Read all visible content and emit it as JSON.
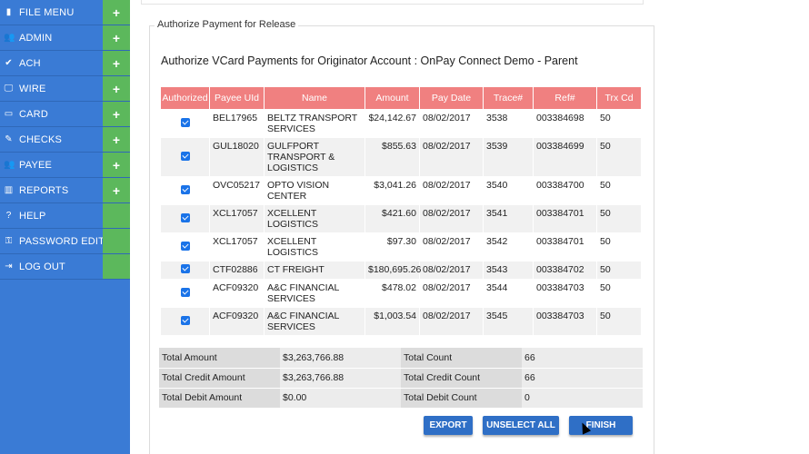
{
  "sidebar": {
    "items": [
      {
        "label": "FILE MENU",
        "icon": "folder-icon",
        "glyph": "▮",
        "expand": "+"
      },
      {
        "label": "ADMIN",
        "icon": "users-icon",
        "glyph": "👥",
        "expand": "+"
      },
      {
        "label": "ACH",
        "icon": "check-icon",
        "glyph": "✔",
        "expand": "+"
      },
      {
        "label": "WIRE",
        "icon": "monitor-icon",
        "glyph": "🖵",
        "expand": "+"
      },
      {
        "label": "CARD",
        "icon": "card-icon",
        "glyph": "▭",
        "expand": "+"
      },
      {
        "label": "CHECKS",
        "icon": "edit-icon",
        "glyph": "✎",
        "expand": "+"
      },
      {
        "label": "PAYEE",
        "icon": "group-icon",
        "glyph": "👥",
        "expand": "+"
      },
      {
        "label": "REPORTS",
        "icon": "bar-chart-icon",
        "glyph": "▥",
        "expand": "+"
      },
      {
        "label": "HELP",
        "icon": "question-icon",
        "glyph": "?",
        "expand": ""
      },
      {
        "label": "PASSWORD EDIT",
        "icon": "key-icon",
        "glyph": "⚿",
        "expand": ""
      },
      {
        "label": "LOG OUT",
        "icon": "logout-icon",
        "glyph": "⇥",
        "expand": ""
      }
    ]
  },
  "panel": {
    "legend": "Authorize Payment for Release",
    "title": "Authorize VCard Payments for Originator Account : OnPay Connect Demo - Parent"
  },
  "table": {
    "headers": [
      "Authorized",
      "Payee UId",
      "Name",
      "Amount",
      "Pay Date",
      "Trace#",
      "Ref#",
      "Trx Cd"
    ],
    "rows": [
      {
        "payee": "BEL17965",
        "name": "BELTZ TRANSPORT SERVICES",
        "amount": "$24,142.67",
        "date": "08/02/2017",
        "trace": "3538",
        "ref": "003384698",
        "trx": "50"
      },
      {
        "payee": "GUL18020",
        "name": "GULFPORT TRANSPORT & LOGISTICS",
        "amount": "$855.63",
        "date": "08/02/2017",
        "trace": "3539",
        "ref": "003384699",
        "trx": "50"
      },
      {
        "payee": "OVC05217",
        "name": "OPTO VISION CENTER",
        "amount": "$3,041.26",
        "date": "08/02/2017",
        "trace": "3540",
        "ref": "003384700",
        "trx": "50"
      },
      {
        "payee": "XCL17057",
        "name": "XCELLENT LOGISTICS",
        "amount": "$421.60",
        "date": "08/02/2017",
        "trace": "3541",
        "ref": "003384701",
        "trx": "50"
      },
      {
        "payee": "XCL17057",
        "name": "XCELLENT LOGISTICS",
        "amount": "$97.30",
        "date": "08/02/2017",
        "trace": "3542",
        "ref": "003384701",
        "trx": "50"
      },
      {
        "payee": "CTF02886",
        "name": "CT FREIGHT",
        "amount": "$180,695.26",
        "date": "08/02/2017",
        "trace": "3543",
        "ref": "003384702",
        "trx": "50"
      },
      {
        "payee": "ACF09320",
        "name": "A&C FINANCIAL SERVICES",
        "amount": "$478.02",
        "date": "08/02/2017",
        "trace": "3544",
        "ref": "003384703",
        "trx": "50"
      },
      {
        "payee": "ACF09320",
        "name": "A&C FINANCIAL SERVICES",
        "amount": "$1,003.54",
        "date": "08/02/2017",
        "trace": "3545",
        "ref": "003384703",
        "trx": "50"
      }
    ]
  },
  "totals": {
    "total_amount_label": "Total Amount",
    "total_amount": "$3,263,766.88",
    "total_count_label": "Total Count",
    "total_count": "66",
    "credit_amount_label": "Total Credit Amount",
    "credit_amount": "$3,263,766.88",
    "credit_count_label": "Total Credit Count",
    "credit_count": "66",
    "debit_amount_label": "Total Debit Amount",
    "debit_amount": "$0.00",
    "debit_count_label": "Total Debit Count",
    "debit_count": "0"
  },
  "buttons": {
    "export": "EXPORT",
    "unselect_all": "UNSELECT ALL",
    "finish": "FINISH"
  },
  "colors": {
    "sidebar": "#3a7bd5",
    "expand": "#5cb85c",
    "table_header": "#f08080",
    "button": "#2f6fc6"
  }
}
